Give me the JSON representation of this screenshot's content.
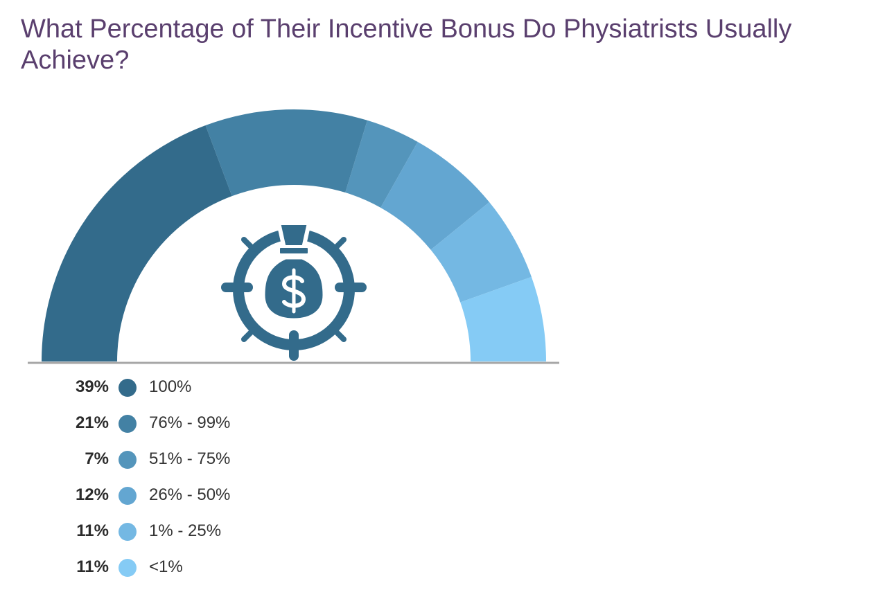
{
  "chart_data": {
    "type": "pie",
    "variant": "semicircle-gauge",
    "title": "What Percentage of Their Incentive Bonus Do Physiatrists Usually Achieve?",
    "categories": [
      "100%",
      "76% - 99%",
      "51% - 75%",
      "26% - 50%",
      "1% - 25%",
      "<1%"
    ],
    "values": [
      39,
      21,
      7,
      12,
      11,
      11
    ],
    "value_labels": [
      "39%",
      "21%",
      "7%",
      "12%",
      "11%",
      "11%"
    ],
    "colors": [
      "#336b8b",
      "#4381a4",
      "#5495bb",
      "#63a6d1",
      "#74b8e3",
      "#85cbf5"
    ],
    "legend_position": "bottom-left",
    "center_icon": "money-bag-target-icon",
    "icon_color": "#336b8b",
    "baseline_color": "#a6a6a6"
  }
}
